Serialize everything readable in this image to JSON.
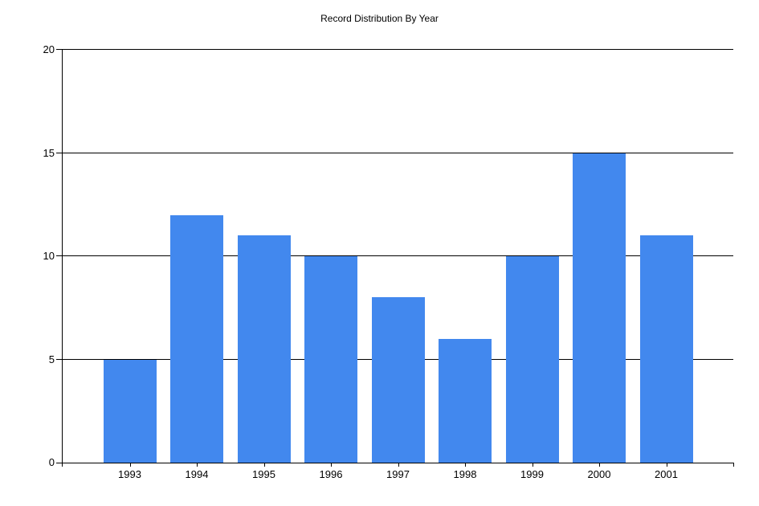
{
  "chart": {
    "title": "Record Distribution By Year"
  },
  "chart_data": {
    "type": "bar",
    "title": "Record Distribution By Year",
    "categories": [
      "1993",
      "1994",
      "1995",
      "1996",
      "1997",
      "1998",
      "1999",
      "2000",
      "2001"
    ],
    "values": [
      5,
      12,
      11,
      10,
      8,
      6,
      10,
      15,
      11
    ],
    "xlabel": "",
    "ylabel": "",
    "ylim": [
      0,
      20
    ],
    "yticks": [
      0,
      5,
      10,
      15,
      20
    ],
    "grid": "horizontal",
    "legend_position": "none",
    "bar_color": "#4288EE",
    "axis_color": "#000000",
    "background_color": "#FFFFFF"
  }
}
